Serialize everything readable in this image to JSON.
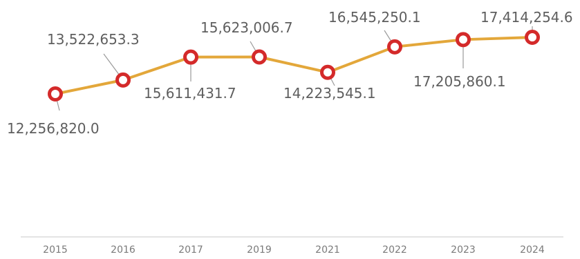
{
  "chart_data": {
    "type": "line",
    "categories": [
      "2015",
      "2016",
      "2017",
      "2019",
      "2021",
      "2022",
      "2023",
      "2024"
    ],
    "values": [
      12256820.0,
      13522653.3,
      15611431.7,
      15623006.7,
      14223545.1,
      16545250.1,
      17205860.1,
      17414254.6
    ],
    "data_labels": [
      "12,256,820.0",
      "13,522,653.3",
      "15,611,431.7",
      "15,623,006.7",
      "14,223,545.1",
      "16,545,250.1",
      "17,205,860.1",
      "17,414,254.6"
    ],
    "title": "",
    "xlabel": "",
    "ylabel": "",
    "grid": false,
    "legend": "none",
    "colors": {
      "line": "#e3a73a",
      "marker_fill": "#ffffff",
      "marker_ring": "#d42a2a",
      "leader": "#9a9a9a",
      "axis": "#dcdcdc"
    }
  }
}
